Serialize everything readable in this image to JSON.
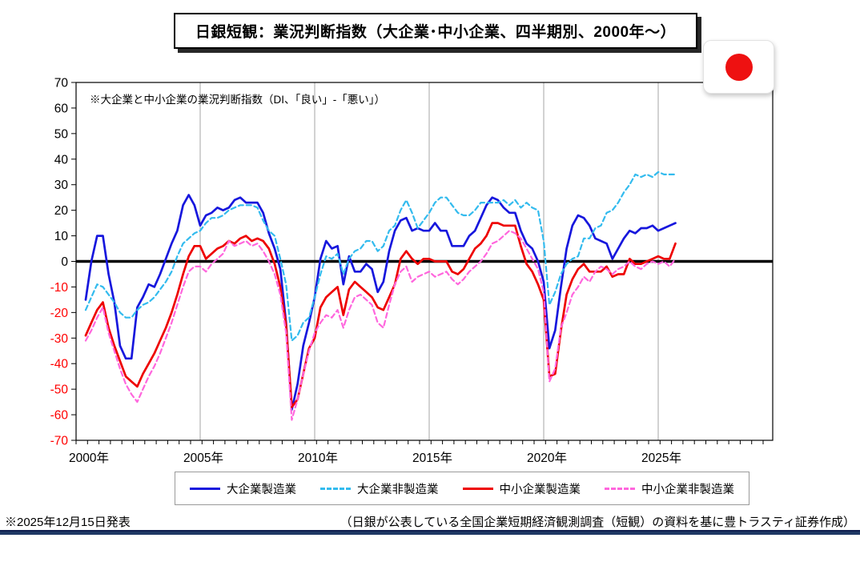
{
  "title": "日銀短観：業況判断指数（大企業･中小企業、四半期別、2000年～）",
  "annotation": "※大企業と中小企業の業況判断指数（DI、「良い」-「悪い」）",
  "flag": {
    "name": "japan-flag",
    "circle_color": "#ee1111"
  },
  "footer": {
    "left": "※2025年12月15日発表",
    "right": "（日銀が公表している全国企業短期経済観測調査（短観）の資料を基に豊トラスティ証券作成）"
  },
  "colors": {
    "negative_axis_label": "#ff0000",
    "axis_label": "#000000",
    "gridline": "#a6a6a6",
    "zero_line": "#000000",
    "bottom_bar": "#1F3864"
  },
  "chart_data": {
    "type": "line",
    "frequency": "quarterly",
    "x_start_year": 2000,
    "x_tick_years": [
      2000,
      2005,
      2010,
      2015,
      2020,
      2025
    ],
    "x_tick_labels": [
      "2000年",
      "2005年",
      "2010年",
      "2015年",
      "2020年",
      "2025年"
    ],
    "ylim": [
      -70,
      70
    ],
    "y_tick_step": 10,
    "grid": "vertical-every-5-years",
    "legend_position": "bottom",
    "series": [
      {
        "name": "大企業製造業",
        "color": "#1717dd",
        "style": "solid",
        "values": [
          -15,
          0,
          10,
          10,
          -5,
          -16,
          -33,
          -38,
          -38,
          -18,
          -14,
          -9,
          -10,
          -5,
          1,
          7,
          12,
          22,
          26,
          22,
          14,
          18,
          19,
          21,
          20,
          21,
          24,
          25,
          23,
          23,
          23,
          19,
          11,
          5,
          -3,
          -24,
          -58,
          -48,
          -33,
          -24,
          -14,
          1,
          8,
          5,
          6,
          -9,
          2,
          -4,
          -4,
          -1,
          -3,
          -12,
          -8,
          4,
          12,
          16,
          17,
          12,
          13,
          12,
          12,
          15,
          12,
          12,
          6,
          6,
          6,
          10,
          12,
          17,
          22,
          25,
          24,
          21,
          19,
          19,
          12,
          7,
          5,
          0,
          -8,
          -34,
          -27,
          -10,
          5,
          14,
          18,
          17,
          14,
          9,
          8,
          7,
          1,
          5,
          9,
          12,
          11,
          13,
          13,
          14,
          12,
          13,
          14,
          15
        ]
      },
      {
        "name": "大企業非製造業",
        "color": "#33bbee",
        "style": "dashed",
        "values": [
          -19,
          -14,
          -9,
          -10,
          -13,
          -16,
          -20,
          -22,
          -22,
          -19,
          -17,
          -16,
          -14,
          -11,
          -8,
          -4,
          2,
          7,
          9,
          11,
          12,
          15,
          17,
          17,
          18,
          20,
          21,
          22,
          22,
          22,
          21,
          16,
          12,
          10,
          1,
          -9,
          -31,
          -29,
          -24,
          -22,
          -14,
          -5,
          2,
          1,
          3,
          -5,
          1,
          4,
          5,
          8,
          8,
          4,
          6,
          12,
          14,
          20,
          24,
          19,
          13,
          16,
          19,
          23,
          25,
          25,
          22,
          19,
          18,
          18,
          20,
          23,
          23,
          23,
          23,
          24,
          22,
          24,
          21,
          23,
          21,
          20,
          8,
          -17,
          -12,
          -5,
          -1,
          1,
          2,
          9,
          9,
          13,
          14,
          19,
          20,
          23,
          27,
          30,
          34,
          33,
          34,
          33,
          35,
          34,
          34,
          34
        ]
      },
      {
        "name": "中小企業製造業",
        "color": "#ee0000",
        "style": "solid",
        "values": [
          -29,
          -24,
          -19,
          -16,
          -26,
          -33,
          -39,
          -45,
          -47,
          -49,
          -44,
          -40,
          -36,
          -31,
          -26,
          -20,
          -13,
          -5,
          2,
          6,
          6,
          1,
          3,
          5,
          6,
          8,
          7,
          9,
          10,
          8,
          9,
          8,
          5,
          -1,
          -10,
          -25,
          -57,
          -54,
          -44,
          -34,
          -30,
          -18,
          -14,
          -12,
          -10,
          -21,
          -11,
          -8,
          -10,
          -12,
          -14,
          -18,
          -19,
          -14,
          -9,
          1,
          4,
          1,
          -1,
          1,
          1,
          0,
          0,
          0,
          -4,
          -5,
          -3,
          1,
          5,
          7,
          10,
          15,
          15,
          14,
          14,
          14,
          6,
          -1,
          -4,
          -9,
          -15,
          -45,
          -44,
          -27,
          -13,
          -7,
          -3,
          -1,
          -4,
          -4,
          -4,
          -2,
          -6,
          -5,
          -5,
          1,
          -1,
          -1,
          0,
          1,
          2,
          1,
          1,
          7
        ]
      },
      {
        "name": "中小企業非製造業",
        "color": "#ff66dd",
        "style": "dashed",
        "values": [
          -31,
          -27,
          -22,
          -18,
          -28,
          -35,
          -42,
          -48,
          -52,
          -55,
          -50,
          -45,
          -41,
          -36,
          -30,
          -24,
          -17,
          -10,
          -4,
          -2,
          -2,
          -4,
          -1,
          1,
          3,
          8,
          6,
          7,
          8,
          6,
          7,
          4,
          0,
          -5,
          -13,
          -28,
          -62,
          -54,
          -44,
          -35,
          -28,
          -24,
          -21,
          -22,
          -19,
          -26,
          -19,
          -14,
          -13,
          -15,
          -17,
          -24,
          -26,
          -17,
          -9,
          -4,
          -2,
          -8,
          -6,
          -5,
          -4,
          -6,
          -5,
          -4,
          -7,
          -9,
          -7,
          -4,
          -2,
          0,
          3,
          7,
          8,
          10,
          12,
          11,
          9,
          5,
          1,
          -3,
          -12,
          -47,
          -42,
          -26,
          -20,
          -13,
          -10,
          -6,
          -8,
          -4,
          -2,
          -3,
          -5,
          -3,
          -2,
          0,
          -2,
          -3,
          -1,
          0,
          -1,
          0,
          -2,
          1
        ]
      }
    ]
  }
}
